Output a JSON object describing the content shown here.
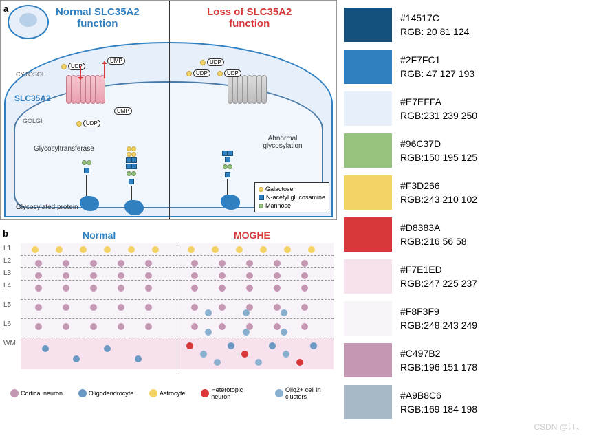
{
  "watermark": "CSDN @汀、",
  "panelA": {
    "label": "a",
    "title_left": "Normal SLC35A2\nfunction",
    "title_right": "Loss of SLC35A2\nfunction",
    "cytosol": "CYTOSOL",
    "golgi": "GOLGI",
    "slc": "SLC35A2",
    "glycosyl": "Glycosyltransferase",
    "glycprot": "Glycosylated protein",
    "abnormal": "Abnormal glycosylation",
    "udp": "UDP",
    "ump": "UMP",
    "sugar_legend": [
      {
        "shape": "gal",
        "label": "Galactose"
      },
      {
        "shape": "sq",
        "label": "N-acetyl glucosamine"
      },
      {
        "shape": "cr",
        "label": "Mannose"
      }
    ],
    "colors": {
      "cell_bg": "#E7EFFA",
      "transporter_pink": "#e8a0b0",
      "transporter_gray": "#bbb",
      "arrow": "#D8383A"
    }
  },
  "panelB": {
    "label": "b",
    "title_left": "Normal",
    "title_right": "MOGHE",
    "layers": [
      "L1",
      "L2",
      "L3",
      "L4",
      "L5",
      "L6",
      "WM"
    ],
    "layer_bg": [
      "#F8F3F9",
      "#F8F3F9",
      "#F8F3F9",
      "#F8F3F9",
      "#F8F3F9",
      "#F8F3F9",
      "#F7E1ED"
    ],
    "layer_heights": [
      18,
      18,
      18,
      28,
      28,
      28,
      45
    ],
    "legend": [
      {
        "color": "#C497B2",
        "label": "Cortical neuron"
      },
      {
        "color": "#6a99c4",
        "label": "Oligodendrocyte"
      },
      {
        "color": "#F3D266",
        "label": "Astrocyte"
      },
      {
        "color": "#D8383A",
        "label": "Heterotopic neuron"
      },
      {
        "color": "#8ab0d0",
        "label": "Olig2+ cell in clusters"
      }
    ]
  },
  "palette": [
    {
      "hex": "#14517C",
      "rgb": "RGB:  20   81 124"
    },
    {
      "hex": "#2F7FC1",
      "rgb": "RGB:  47 127 193"
    },
    {
      "hex": "#E7EFFA",
      "rgb": "RGB:231 239 250"
    },
    {
      "hex": "#96C37D",
      "rgb": "RGB:150 195 125"
    },
    {
      "hex": "#F3D266",
      "rgb": "RGB:243 210 102"
    },
    {
      "hex": "#D8383A",
      "rgb": "RGB:216   56   58"
    },
    {
      "hex": "#F7E1ED",
      "rgb": "RGB:247 225 237"
    },
    {
      "hex": "#F8F3F9",
      "rgb": "RGB:248 243 249"
    },
    {
      "hex": "#C497B2",
      "rgb": "RGB:196 151 178"
    },
    {
      "hex": "#A9B8C6",
      "rgb": "RGB:169 184 198"
    }
  ]
}
